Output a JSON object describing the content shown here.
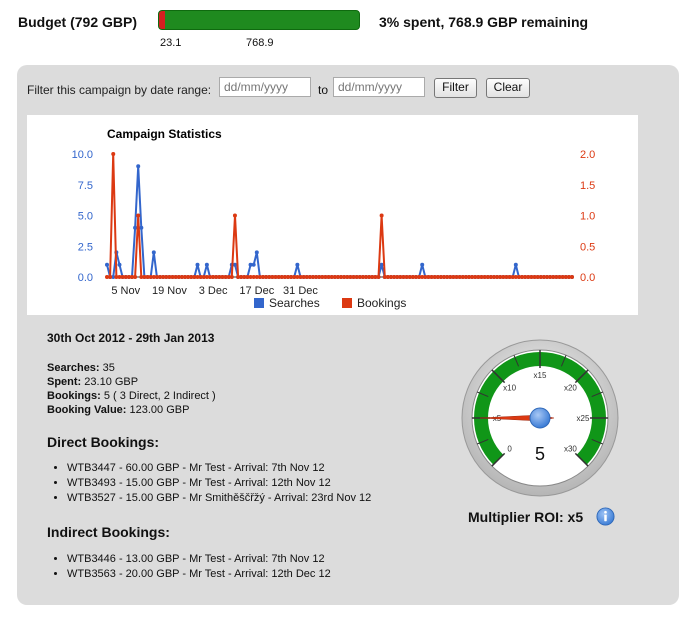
{
  "budget": {
    "title": "Budget (792 GBP)",
    "spent_value": "23.1",
    "remaining_value": "768.9",
    "spent_fraction": 0.03,
    "summary": "3% spent, 768.9 GBP remaining",
    "colors": {
      "spent": "#d42020",
      "remaining": "#1f8a1f"
    }
  },
  "filter": {
    "label": "Filter this campaign by date range:",
    "from_placeholder": "dd/mm/yyyy",
    "to_label": "to",
    "to_placeholder": "dd/mm/yyyy",
    "filter_button": "Filter",
    "clear_button": "Clear"
  },
  "chart_data": {
    "type": "line",
    "title": "Campaign Statistics",
    "x_tick_labels": [
      "5 Nov",
      "19 Nov",
      "3 Dec",
      "17 Dec",
      "31 Dec"
    ],
    "x_tick_day_index": [
      6,
      20,
      34,
      48,
      62
    ],
    "y_left": {
      "ticks": [
        "10.0",
        "7.5",
        "5.0",
        "2.5",
        "0.0"
      ],
      "range": [
        0,
        10
      ],
      "color": "#3366cc"
    },
    "y_right": {
      "ticks": [
        "2.0",
        "1.5",
        "1.0",
        "0.5",
        "0.0"
      ],
      "range": [
        0,
        2
      ],
      "color": "#dc3912"
    },
    "series": [
      {
        "name": "Searches",
        "color": "#3366cc",
        "axis": "left",
        "values": [
          1,
          0,
          0,
          2,
          1,
          0,
          0,
          0,
          0,
          4,
          9,
          4,
          0,
          0,
          0,
          2,
          0,
          0,
          0,
          0,
          0,
          0,
          0,
          0,
          0,
          0,
          0,
          0,
          0,
          1,
          0,
          0,
          1,
          0,
          0,
          0,
          0,
          0,
          0,
          0,
          1,
          1,
          0,
          0,
          0,
          0,
          1,
          1,
          2,
          0,
          0,
          0,
          0,
          0,
          0,
          0,
          0,
          0,
          0,
          0,
          0,
          1,
          0,
          0,
          0,
          0,
          0,
          0,
          0,
          0,
          0,
          0,
          0,
          0,
          0,
          0,
          0,
          0,
          0,
          0,
          0,
          0,
          0,
          0,
          0,
          0,
          0,
          0,
          1,
          0,
          0,
          0,
          0,
          0,
          0,
          0,
          0,
          0,
          0,
          0,
          0,
          1,
          0,
          0,
          0,
          0,
          0,
          0,
          0,
          0,
          0,
          0,
          0,
          0,
          0,
          0,
          0,
          0,
          0,
          0,
          0,
          0,
          0,
          0,
          0,
          0,
          0,
          0,
          0,
          0,
          0,
          1,
          0,
          0,
          0,
          0,
          0,
          0,
          0,
          0,
          0,
          0,
          0,
          0,
          0,
          0,
          0,
          0,
          0,
          0
        ]
      },
      {
        "name": "Bookings",
        "color": "#dc3912",
        "axis": "right",
        "values": [
          0,
          0,
          2,
          0,
          0,
          0,
          0,
          0,
          0,
          0,
          1,
          0,
          0,
          0,
          0,
          0,
          0,
          0,
          0,
          0,
          0,
          0,
          0,
          0,
          0,
          0,
          0,
          0,
          0,
          0,
          0,
          0,
          0,
          0,
          0,
          0,
          0,
          0,
          0,
          0,
          0,
          1,
          0,
          0,
          0,
          0,
          0,
          0,
          0,
          0,
          0,
          0,
          0,
          0,
          0,
          0,
          0,
          0,
          0,
          0,
          0,
          0,
          0,
          0,
          0,
          0,
          0,
          0,
          0,
          0,
          0,
          0,
          0,
          0,
          0,
          0,
          0,
          0,
          0,
          0,
          0,
          0,
          0,
          0,
          0,
          0,
          0,
          0,
          1,
          0,
          0,
          0,
          0,
          0,
          0,
          0,
          0,
          0,
          0,
          0,
          0,
          0,
          0,
          0,
          0,
          0,
          0,
          0,
          0,
          0,
          0,
          0,
          0,
          0,
          0,
          0,
          0,
          0,
          0,
          0,
          0,
          0,
          0,
          0,
          0,
          0,
          0,
          0,
          0,
          0,
          0,
          0,
          0,
          0,
          0,
          0,
          0,
          0,
          0,
          0,
          0,
          0,
          0,
          0,
          0,
          0,
          0,
          0,
          0,
          0
        ]
      }
    ],
    "legend": [
      "Searches",
      "Bookings"
    ],
    "legend_position": "bottom",
    "grid": false
  },
  "stats": {
    "date_range": "30th Oct 2012 - 29th Jan 2013",
    "searches_label": "Searches:",
    "searches_value": " 35",
    "spent_label": "Spent:",
    "spent_value": " 23.10 GBP",
    "bookings_label": "Bookings:",
    "bookings_value": " 5 ( 3 Direct, 2 Indirect )",
    "booking_value_label": "Booking Value:",
    "booking_value_value": " 123.00 GBP"
  },
  "direct_bookings": {
    "heading": "Direct Bookings:",
    "items": [
      "WTB3447 - 60.00 GBP - Mr Test - Arrival: 7th Nov 12",
      "WTB3493 - 15.00 GBP - Mr Test - Arrival: 12th Nov 12",
      "WTB3527 - 15.00 GBP - Mr Smithěščřžý - Arrival: 23rd Nov 12"
    ]
  },
  "indirect_bookings": {
    "heading": "Indirect Bookings:",
    "items": [
      "WTB3446 - 13.00 GBP - Mr Test - Arrival: 7th Nov 12",
      "WTB3563 - 20.00 GBP - Mr Test - Arrival: 12th Dec 12"
    ]
  },
  "gauge": {
    "value": 5,
    "value_label": "5",
    "ticks": [
      "0",
      "x5",
      "x10",
      "x15",
      "x20",
      "x25",
      "x30"
    ],
    "min": 0,
    "max": 30,
    "band_color": "#109618",
    "needle_color": "#dc3912",
    "roi_label": "Multiplier ROI: x5",
    "info_icon": "info-icon"
  }
}
